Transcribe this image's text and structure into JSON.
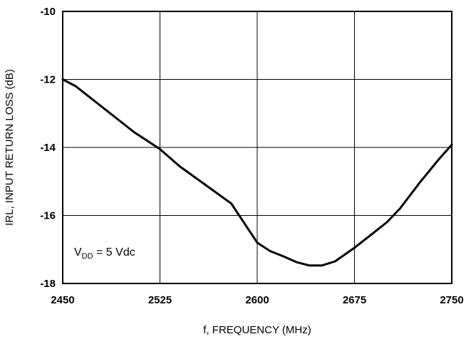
{
  "chart_data": {
    "type": "line",
    "title": "",
    "xlabel": "f, FREQUENCY (MHz)",
    "ylabel": "IRL, INPUT RETURN LOSS (dB)",
    "xlim": [
      2450,
      2750
    ],
    "ylim": [
      -18,
      -10
    ],
    "x_ticks": [
      2450,
      2525,
      2600,
      2675,
      2750
    ],
    "y_ticks": [
      -10,
      -12,
      -14,
      -16,
      -18
    ],
    "grid": true,
    "legend": "none",
    "annotation": {
      "main": "V",
      "sub": "DD",
      "rest": " = 5 Vdc"
    },
    "series": [
      {
        "color": "#000000",
        "x": [
          2450,
          2460,
          2475,
          2490,
          2505,
          2525,
          2540,
          2560,
          2580,
          2600,
          2610,
          2620,
          2630,
          2640,
          2650,
          2660,
          2675,
          2690,
          2700,
          2710,
          2725,
          2740,
          2750
        ],
        "y": [
          -12.0,
          -12.2,
          -12.65,
          -13.1,
          -13.55,
          -14.05,
          -14.55,
          -15.1,
          -15.65,
          -16.8,
          -17.05,
          -17.2,
          -17.37,
          -17.47,
          -17.47,
          -17.35,
          -16.95,
          -16.5,
          -16.2,
          -15.8,
          -15.05,
          -14.35,
          -13.92
        ]
      }
    ]
  }
}
